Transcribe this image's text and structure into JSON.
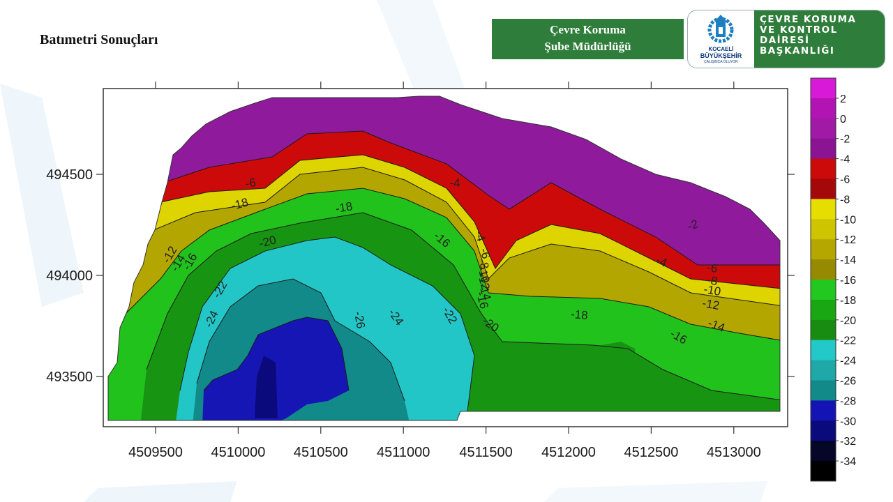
{
  "slide": {
    "title": "Batımetri Sonuçları",
    "department_line1": "Çevre Koruma",
    "department_line2": "Şube Müdürlüğü"
  },
  "logo": {
    "name_line1": "KOCAELİ",
    "name_line2": "BÜYÜKŞEHİR",
    "slogan": "ÇALIŞINCA OLUYOR",
    "org_lines": [
      "ÇEVRE KORUMA",
      "VE KONTROL",
      "DAİRESİ",
      "BAŞKANLIĞI"
    ]
  },
  "map": {
    "type": "bathymetric-contour-map",
    "x_ticks": [
      "4509500",
      "4510000",
      "4510500",
      "4511000",
      "4511500",
      "4512000",
      "4512500",
      "4513000"
    ],
    "y_ticks": [
      "494500",
      "494000",
      "493500"
    ],
    "contour_labels": [
      "-6",
      "-4",
      "-18",
      "-18",
      "-20",
      "-12",
      "-14",
      "-16",
      "-22",
      "-24",
      "-26",
      "-24",
      "-22",
      "-16",
      "-20",
      "-18",
      "-16",
      "-14",
      "-12",
      "-10",
      "-8",
      "-6",
      "-4",
      "-2",
      "-4",
      "-6",
      "-8",
      "-10",
      "-12",
      "-14",
      "-16"
    ],
    "legend": {
      "labels": [
        "2",
        "0",
        "-2",
        "-4",
        "-6",
        "-8",
        "-10",
        "-12",
        "-14",
        "-16",
        "-18",
        "-20",
        "-22",
        "-24",
        "-26",
        "-28",
        "-30",
        "-32",
        "-34"
      ],
      "colors": [
        "#d81ad8",
        "#b214b4",
        "#a01aa6",
        "#8a1492",
        "#cc0a0a",
        "#a50808",
        "#e6de00",
        "#cfc400",
        "#b6a600",
        "#968a00",
        "#22c81f",
        "#19a814",
        "#188c10",
        "#23c8c8",
        "#1ea8a8",
        "#138a8a",
        "#1414b4",
        "#0a0a7d",
        "#060628",
        "#000000"
      ]
    },
    "colors": {
      "purple": "#8f1a9c",
      "red": "#cc0a0a",
      "yellow": "#ddd400",
      "olive": "#b4a600",
      "green": "#22c21c",
      "dark_green": "#189413",
      "cyan": "#23c6c6",
      "teal": "#138a8a",
      "blue": "#1616b4",
      "navy": "#0a0a7d"
    }
  }
}
